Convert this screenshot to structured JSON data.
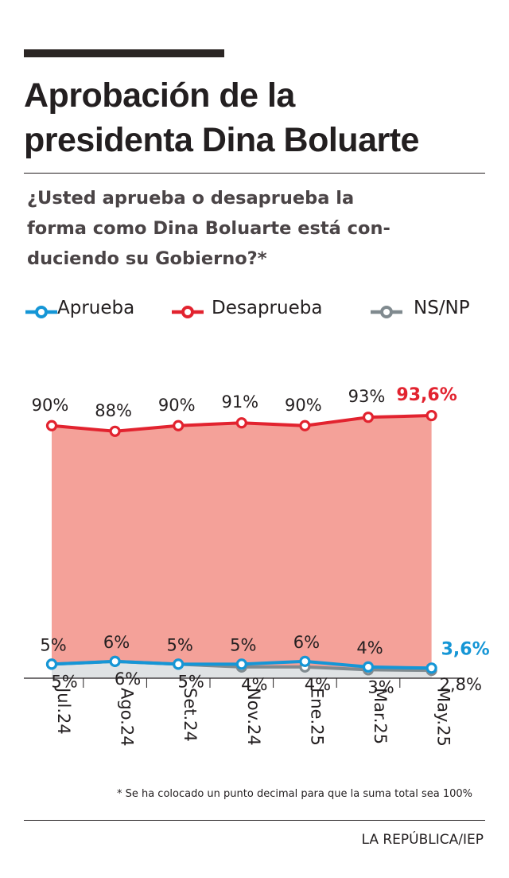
{
  "header": {
    "title_line1": "Aprobación de la",
    "title_line2": "presidenta Dina Boluarte",
    "question_line1": "¿Usted aprueba o desaprueba la",
    "question_line2": "forma como Dina Boluarte está con-",
    "question_line3": "duciendo su Gobierno?*"
  },
  "legend": [
    {
      "label": "Aprueba",
      "color": "#1596d6"
    },
    {
      "label": "Desaprueba",
      "color": "#e2232f"
    },
    {
      "label": "NS/NP",
      "color": "#808a8f"
    }
  ],
  "chart_data": {
    "type": "line",
    "categories": [
      "Jul.24",
      "Ago.24",
      "Set.24",
      "Nov.24",
      "Ene.25",
      "Mar.25",
      "May.25"
    ],
    "series": [
      {
        "name": "Desaprueba",
        "color": "#e2232f",
        "area_color": "#f4a199",
        "values": [
          90,
          88,
          90,
          91,
          90,
          93,
          93.6
        ],
        "labels": [
          "90%",
          "88%",
          "90%",
          "91%",
          "90%",
          "93%",
          "93,6%"
        ]
      },
      {
        "name": "Aprueba",
        "color": "#1596d6",
        "values": [
          5,
          6,
          5,
          5,
          6,
          4,
          3.6
        ],
        "labels": [
          "5%",
          "6%",
          "5%",
          "5%",
          "6%",
          "4%",
          "3,6%"
        ]
      },
      {
        "name": "NS/NP",
        "color": "#808a8f",
        "area_color": "#dfe2e4",
        "values": [
          5,
          6,
          5,
          4,
          4,
          3,
          2.8
        ],
        "labels": [
          "5%",
          "6%",
          "5%",
          "4%",
          "4%",
          "3%",
          "2,8%"
        ]
      }
    ],
    "ylim": [
      0,
      100
    ],
    "grid": false,
    "legend_position": "top"
  },
  "footer": {
    "footnote": "* Se ha colocado un punto decimal para que la suma total sea 100%",
    "source": "LA REPÚBLICA/IEP"
  }
}
